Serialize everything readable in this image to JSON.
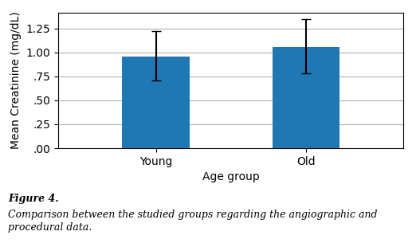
{
  "chart_data": {
    "type": "bar",
    "categories": [
      "Young",
      "Old"
    ],
    "values": [
      0.96,
      1.06
    ],
    "errors_upper": [
      0.265,
      0.29
    ],
    "errors_lower": [
      0.255,
      0.275
    ],
    "x_label": "Age group",
    "y_label": "Mean Creatinine (mg/dL)",
    "ylim": [
      0.0,
      1.42
    ],
    "yticks": [
      {
        "value": 0.0,
        "label": ".00"
      },
      {
        "value": 0.25,
        "label": ".25"
      },
      {
        "value": 0.5,
        "label": ".50"
      },
      {
        "value": 0.75,
        "label": ".75"
      },
      {
        "value": 1.0,
        "label": "1.00"
      },
      1.25
    ],
    "grid": true,
    "annotations": [
      "Figure 4.",
      "Comparison between the studied groups regarding the angiographic and procedural data."
    ]
  }
}
